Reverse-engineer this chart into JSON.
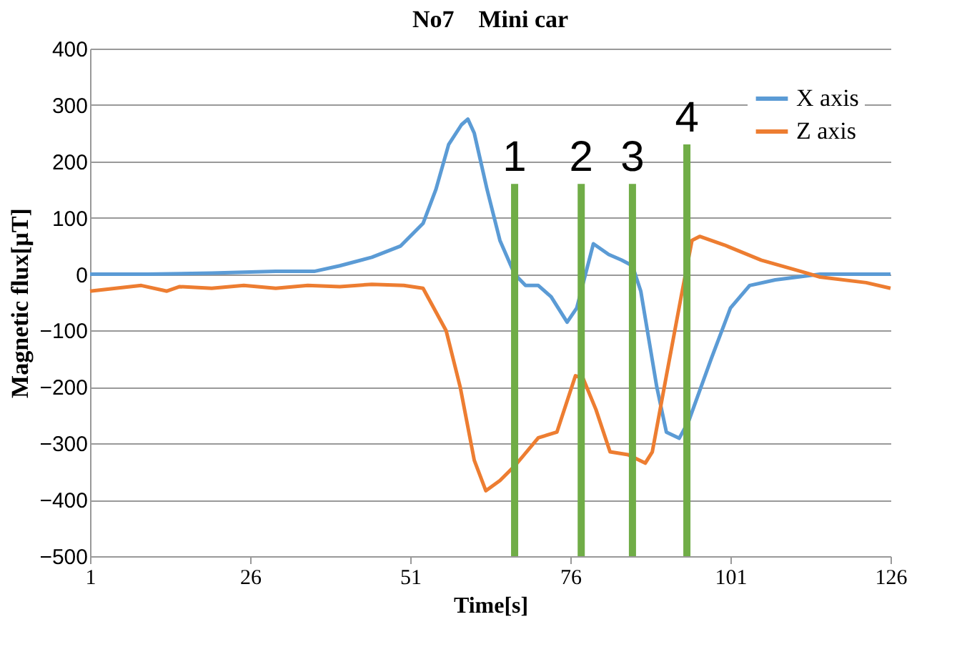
{
  "chart_data": {
    "type": "line",
    "title": "No7　Mini car",
    "xlabel": "Time[s]",
    "ylabel": "Magnetic flux[μT]",
    "xlim": [
      1,
      126
    ],
    "xticks": [
      1,
      26,
      51,
      76,
      101,
      126
    ],
    "ylim": [
      -500,
      400
    ],
    "yticks": [
      -500,
      -400,
      -300,
      -200,
      -100,
      0,
      100,
      200,
      300,
      400
    ],
    "grid": "y",
    "legend": "top right",
    "marker": "none",
    "line_style": "solid",
    "series": [
      {
        "name": "X axis",
        "color": "#5b9bd5",
        "x": [
          1,
          10,
          20,
          30,
          36,
          40,
          45,
          49.5,
          53,
          55,
          57,
          59,
          60,
          61,
          63,
          65,
          67.3,
          69,
          71,
          73,
          75.5,
          77,
          79.6,
          82,
          84,
          85.7,
          87,
          89.5,
          91,
          93,
          94.5,
          98,
          101,
          104,
          108,
          115,
          126
        ],
        "values": [
          0,
          0,
          2,
          5,
          5,
          15,
          30,
          50,
          90,
          150,
          230,
          265,
          275,
          250,
          150,
          60,
          0,
          -20,
          -20,
          -40,
          -85,
          -60,
          54,
          35,
          25,
          15,
          -30,
          -200,
          -280,
          -291,
          -260,
          -150,
          -60,
          -20,
          -10,
          0,
          0
        ]
      },
      {
        "name": "Z axis",
        "color": "#ed7d31",
        "x": [
          1,
          5,
          9,
          13,
          15,
          20,
          25,
          30,
          35,
          40,
          45,
          50,
          53,
          56.6,
          58.8,
          61,
          62.8,
          65,
          67.3,
          68.8,
          71,
          73.9,
          76.8,
          78,
          80,
          82.2,
          85,
          87.7,
          88.8,
          91,
          93.3,
          95,
          96.2,
          100,
          105.8,
          112,
          115,
          122.2,
          126
        ],
        "values": [
          -30,
          -25,
          -20,
          -30,
          -22,
          -25,
          -20,
          -25,
          -20,
          -22,
          -18,
          -20,
          -25,
          -100,
          -200,
          -330,
          -384,
          -366,
          -340,
          -320,
          -290,
          -280,
          -180,
          -185,
          -240,
          -315,
          -320,
          -335,
          -315,
          -180,
          -40,
          60,
          67,
          52,
          25,
          5,
          -5,
          -15,
          -25
        ]
      }
    ],
    "ref_lines": [
      {
        "axis": "x",
        "value": 67.3,
        "color": "#70ad47"
      },
      {
        "axis": "x",
        "value": 77.7,
        "color": "#70ad47"
      },
      {
        "axis": "x",
        "value": 85.7,
        "color": "#70ad47"
      },
      {
        "axis": "x",
        "value": 94.2,
        "color": "#70ad47"
      }
    ],
    "annotations": [
      {
        "text": "1",
        "x": 67.3,
        "y": 160
      },
      {
        "text": "2",
        "x": 77.7,
        "y": 160
      },
      {
        "text": "3",
        "x": 85.7,
        "y": 160
      },
      {
        "text": "4",
        "x": 94.2,
        "y": 230
      }
    ]
  }
}
